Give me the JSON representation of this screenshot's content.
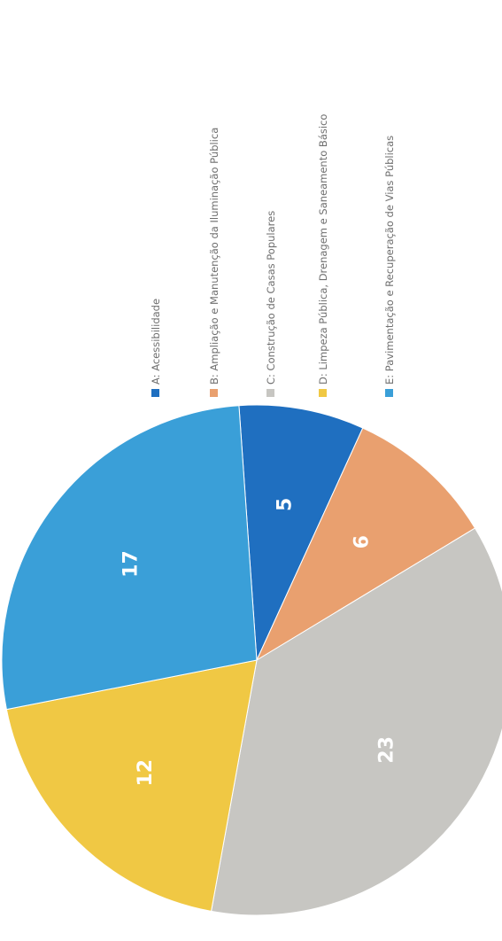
{
  "chart_data": {
    "type": "pie",
    "title": "",
    "categories": [
      "A: Acessibilidade",
      "B: Ampliação e Manutenção da Iluminação Pública",
      "C: Construção de Casas Populares",
      "D: Limpeza Pública, Drenagem e Saneamento Básico",
      "E: Pavimentação e Recuperação de Vias Públicas"
    ],
    "values": [
      5,
      6,
      23,
      12,
      17
    ],
    "colors": [
      "#1f6fc0",
      "#e9a06f",
      "#c7c6c2",
      "#f0c844",
      "#3a9fd8"
    ],
    "data_labels": [
      "5",
      "6",
      "23",
      "12",
      "17"
    ],
    "legend_position": "right",
    "orientation": "rotated 90° clockwise"
  }
}
